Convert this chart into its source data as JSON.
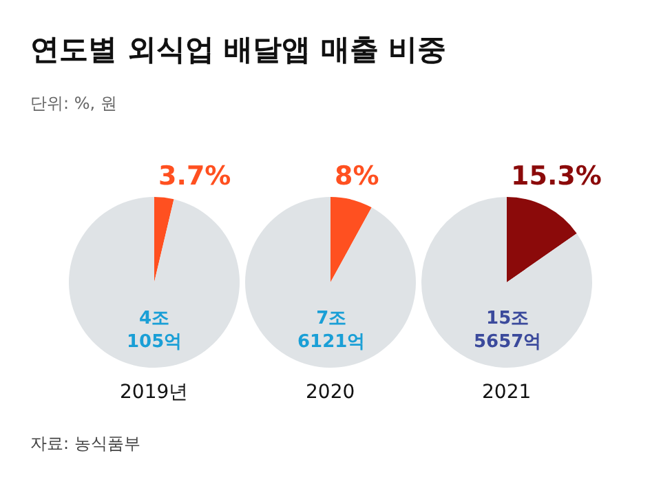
{
  "chart_data": [
    {
      "type": "pie",
      "title": "연도별 외식업 배달앱 매출 비중",
      "subtitle": "단위: %, 원",
      "categories": [
        null,
        null
      ],
      "values": [
        3.7,
        96.3
      ],
      "colors": [
        "#ff5020",
        "#dfe3e6"
      ],
      "value_labels": [
        "3.7%",
        null
      ],
      "xlabel": "2019년",
      "annotations": [
        "4조\n105억",
        "자료: 농식품부"
      ]
    },
    {
      "type": "pie",
      "categories": [
        null,
        null
      ],
      "values": [
        8,
        92
      ],
      "colors": [
        "#ff5020",
        "#dfe3e6"
      ],
      "value_labels": [
        "8%",
        null
      ],
      "xlabel": "2020",
      "annotations": [
        "7조\n6121억"
      ]
    },
    {
      "type": "pie",
      "categories": [
        null,
        null
      ],
      "values": [
        15.3,
        84.7
      ],
      "colors": [
        "#8b0a0a",
        "#dfe3e6"
      ],
      "value_labels": [
        "15.3%",
        null
      ],
      "xlabel": "2021",
      "annotations": [
        "15조\n5657억"
      ]
    }
  ]
}
